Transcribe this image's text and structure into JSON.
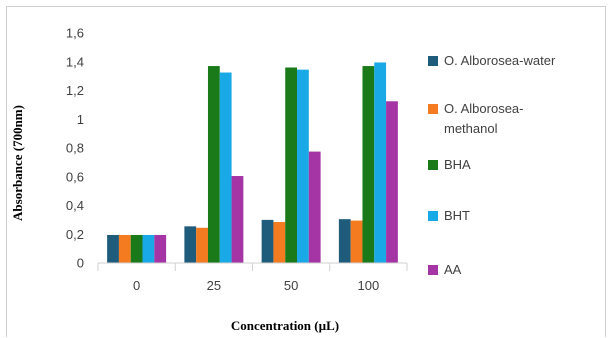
{
  "chart_data": {
    "type": "bar",
    "categories": [
      "0",
      "25",
      "50",
      "100"
    ],
    "series": [
      {
        "name": "O. Alborosea-water",
        "name_lines": [
          "O. Alborosea-water"
        ],
        "color": "#1f5b7a",
        "values": [
          0.195,
          0.255,
          0.3,
          0.305
        ]
      },
      {
        "name": "O. Alborosea-methanol",
        "name_lines": [
          "O. Alborosea-",
          "methanol"
        ],
        "color": "#f47b20",
        "values": [
          0.195,
          0.245,
          0.285,
          0.295
        ]
      },
      {
        "name": "BHA",
        "name_lines": [
          "BHA"
        ],
        "color": "#1a7a1a",
        "values": [
          0.195,
          1.37,
          1.36,
          1.37
        ]
      },
      {
        "name": "BHT",
        "name_lines": [
          "BHT"
        ],
        "color": "#19a9e6",
        "values": [
          0.195,
          1.325,
          1.345,
          1.395
        ]
      },
      {
        "name": "AA",
        "name_lines": [
          "AA"
        ],
        "color": "#a535a5",
        "values": [
          0.195,
          0.605,
          0.775,
          1.125
        ]
      }
    ],
    "yticks": [
      "0",
      "0,2",
      "0,4",
      "0,6",
      "0,8",
      "1",
      "1,2",
      "1,4",
      "1,6"
    ],
    "ylim": [
      0,
      1.6
    ],
    "xlabel": "Concentration (µL)",
    "ylabel": "Absorbance (700nm)",
    "legend_position": "right",
    "grid": false
  }
}
